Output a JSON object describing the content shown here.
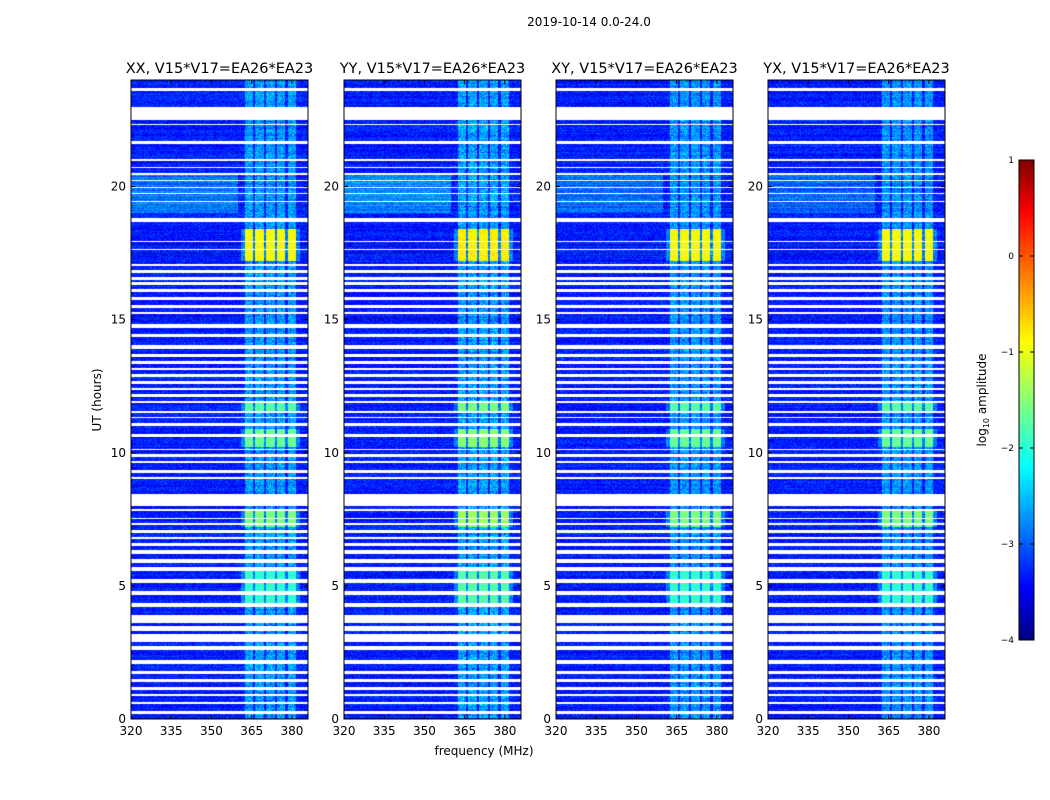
{
  "suptitle": "2019-10-14 0.0-24.0",
  "colors": {
    "background": "#ffffff",
    "gap": "#ffffff",
    "colormap": [
      "#00007f",
      "#0000ff",
      "#007fff",
      "#00ffff",
      "#7fff7f",
      "#ffff00",
      "#ff7f00",
      "#ff0000",
      "#7f0000"
    ]
  },
  "chart_data": {
    "type": "heatmap",
    "panels": [
      {
        "title": "XX, V15*V17=EA26*EA23",
        "bright": 1.0
      },
      {
        "title": "YY, V15*V17=EA26*EA23",
        "bright": 1.15
      },
      {
        "title": "XY, V15*V17=EA26*EA23",
        "bright": 0.9
      },
      {
        "title": "YX, V15*V17=EA26*EA23",
        "bright": 0.85
      }
    ],
    "xlabel": "frequency (MHz)",
    "ylabel": "UT (hours)",
    "xlim": [
      320,
      386
    ],
    "ylim": [
      0,
      24
    ],
    "xticks": [
      320,
      335,
      350,
      365,
      380
    ],
    "xtick_labels": [
      "320",
      "335",
      "350",
      "365",
      "380"
    ],
    "yticks": [
      0,
      5,
      10,
      15,
      20
    ],
    "ytick_labels": [
      "0",
      "5",
      "10",
      "15",
      "20"
    ],
    "gaps_hours": [
      [
        0.2,
        0.3
      ],
      [
        0.55,
        0.65
      ],
      [
        0.85,
        0.95
      ],
      [
        1.1,
        1.2
      ],
      [
        1.4,
        1.5
      ],
      [
        1.7,
        1.8
      ],
      [
        2.05,
        2.2
      ],
      [
        2.6,
        2.75
      ],
      [
        2.9,
        3.2
      ],
      [
        3.3,
        3.5
      ],
      [
        3.6,
        3.9
      ],
      [
        4.2,
        4.35
      ],
      [
        4.65,
        4.8
      ],
      [
        5.1,
        5.25
      ],
      [
        5.55,
        5.7
      ],
      [
        5.85,
        6.0
      ],
      [
        6.2,
        6.35
      ],
      [
        6.5,
        6.6
      ],
      [
        6.75,
        6.85
      ],
      [
        7.0,
        7.1
      ],
      [
        7.3,
        7.35
      ],
      [
        7.5,
        7.55
      ],
      [
        7.8,
        7.9
      ],
      [
        8.0,
        8.45
      ],
      [
        9.0,
        9.1
      ],
      [
        9.25,
        9.35
      ],
      [
        9.6,
        9.7
      ],
      [
        9.85,
        9.95
      ],
      [
        10.1,
        10.15
      ],
      [
        10.6,
        10.7
      ],
      [
        11.0,
        11.1
      ],
      [
        11.3,
        11.35
      ],
      [
        11.5,
        11.55
      ],
      [
        11.85,
        11.95
      ],
      [
        12.1,
        12.2
      ],
      [
        12.35,
        12.45
      ],
      [
        12.6,
        12.7
      ],
      [
        12.85,
        12.95
      ],
      [
        13.1,
        13.2
      ],
      [
        13.35,
        13.45
      ],
      [
        13.6,
        13.7
      ],
      [
        13.9,
        14.05
      ],
      [
        14.35,
        14.45
      ],
      [
        14.7,
        14.85
      ],
      [
        15.2,
        15.3
      ],
      [
        15.45,
        15.55
      ],
      [
        15.75,
        15.85
      ],
      [
        16.05,
        16.15
      ],
      [
        16.3,
        16.4
      ],
      [
        16.5,
        16.6
      ],
      [
        16.75,
        16.85
      ],
      [
        17.0,
        17.1
      ],
      [
        17.6,
        17.65
      ],
      [
        17.9,
        17.95
      ],
      [
        18.65,
        18.8
      ],
      [
        19.4,
        19.45
      ],
      [
        19.7,
        19.75
      ],
      [
        19.95,
        20.0
      ],
      [
        20.2,
        20.25
      ],
      [
        20.45,
        20.5
      ],
      [
        20.7,
        20.75
      ],
      [
        20.95,
        21.05
      ],
      [
        21.6,
        21.7
      ],
      [
        22.3,
        22.35
      ],
      [
        22.5,
        23.0
      ],
      [
        23.6,
        23.7
      ]
    ],
    "bright_bands": [
      {
        "start": 17.2,
        "end": 18.4,
        "level": -0.9
      },
      {
        "start": 10.2,
        "end": 10.9,
        "level": -1.6
      },
      {
        "start": 7.2,
        "end": 7.8,
        "level": -1.5
      },
      {
        "start": 11.5,
        "end": 11.9,
        "level": -1.7
      },
      {
        "start": 4.2,
        "end": 5.6,
        "level": -1.9
      }
    ],
    "rfi_channels_mhz": [
      364,
      368,
      372,
      376,
      380
    ],
    "colorbar": {
      "label_prefix": "log",
      "label_sub": "10",
      "label_suffix": " amplitude",
      "min": -4,
      "max": 1,
      "ticks": [
        1,
        0,
        -1,
        -2,
        -3,
        -4
      ],
      "tick_labels": [
        "1",
        "0",
        "−1",
        "−2",
        "−3",
        "−4"
      ]
    }
  }
}
